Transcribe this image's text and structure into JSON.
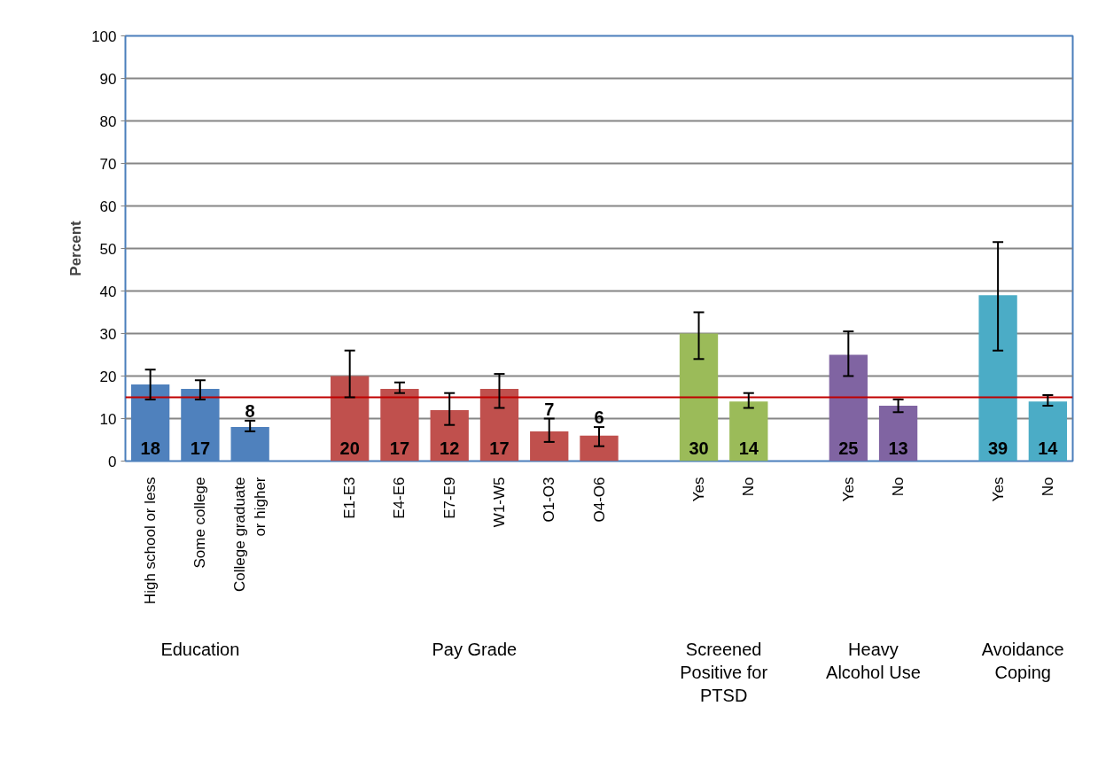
{
  "chart_data": {
    "type": "bar",
    "ylabel": "Percent",
    "categories": [
      "High school or less",
      "Some college",
      "College graduate\nor higher",
      null,
      "E1-E3",
      "E4-E6",
      "E7-E9",
      "W1-W5",
      "O1-O3",
      "O4-O6",
      null,
      "Yes",
      "No",
      null,
      "Yes",
      "No",
      null,
      "Yes",
      "No"
    ],
    "values": [
      18,
      17,
      8,
      null,
      20,
      17,
      12,
      17,
      7,
      6,
      null,
      30,
      14,
      null,
      25,
      13,
      null,
      39,
      14
    ],
    "colors": [
      "#4f81bd",
      "#4f81bd",
      "#4f81bd",
      null,
      "#c0504d",
      "#c0504d",
      "#c0504d",
      "#c0504d",
      "#c0504d",
      "#c0504d",
      null,
      "#9bbb59",
      "#9bbb59",
      null,
      "#8064a2",
      "#8064a2",
      null,
      "#4bacc6",
      "#4bacc6"
    ],
    "errors": [
      [
        14.5,
        21.5
      ],
      [
        14.5,
        19
      ],
      [
        7,
        9.5
      ],
      null,
      [
        15,
        26
      ],
      [
        16,
        18.5
      ],
      [
        8.5,
        16
      ],
      [
        12.5,
        20.5
      ],
      [
        4.5,
        10
      ],
      [
        3.5,
        8
      ],
      null,
      [
        24,
        35
      ],
      [
        12.5,
        16
      ],
      null,
      [
        20,
        30.5
      ],
      [
        11.5,
        14.5
      ],
      null,
      [
        26,
        51.5
      ],
      [
        13,
        15.5
      ]
    ],
    "ylim": [
      0,
      100
    ],
    "yticks": [
      0,
      10,
      20,
      30,
      40,
      50,
      60,
      70,
      80,
      90,
      100
    ],
    "grid": "y",
    "data_labels": true,
    "ref_lines": [
      {
        "axis": "y",
        "value": 15,
        "label": null,
        "color": "#c00000"
      }
    ],
    "annotations": [
      "Education",
      "Pay Grade",
      "Screened\nPositive for\nPTSD",
      "Heavy\nAlcohol Use",
      "Avoidance\nCoping"
    ]
  }
}
